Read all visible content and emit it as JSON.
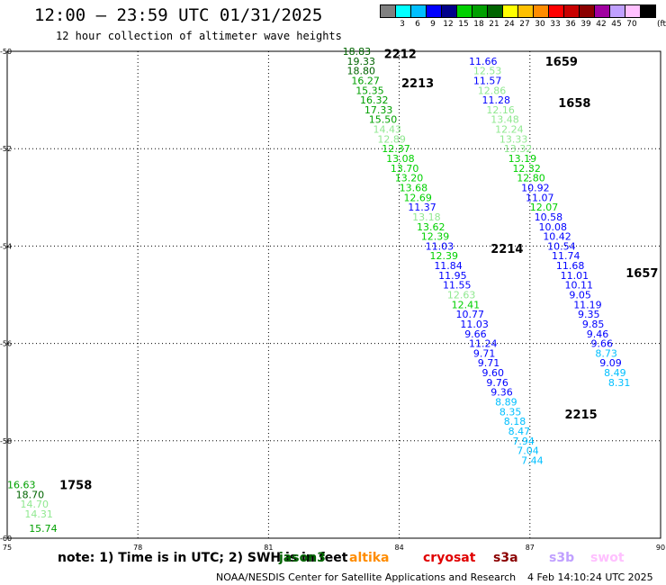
{
  "header": {
    "title": "12:00 – 23:59 UTC 01/31/2025",
    "subtitle": "12 hour collection of altimeter wave heights",
    "units": "(ft)"
  },
  "colorbar": {
    "colors": [
      "#808080",
      "#00ffff",
      "#00bfff",
      "#0000ff",
      "#00008b",
      "#00d000",
      "#00a000",
      "#006400",
      "#ffff00",
      "#ffc000",
      "#ff8c00",
      "#ff0000",
      "#c80000",
      "#8b0000",
      "#a000a0",
      "#c0a0ff",
      "#ffc0ff",
      "#000000"
    ],
    "labels": [
      "3",
      "6",
      "9",
      "12",
      "15",
      "18",
      "21",
      "24",
      "27",
      "30",
      "33",
      "36",
      "39",
      "42",
      "45",
      "70"
    ]
  },
  "footer": {
    "note": "note:  1) Time is in UTC;  2) SWH is in feet",
    "credit": "NOAA/NESDIS Center for Satellite Applications and Research",
    "timestamp": "4 Feb 14:10:24 UTC 2025",
    "legend": [
      {
        "label": "jason3",
        "color": "#006400"
      },
      {
        "label": "altika",
        "color": "#ff8c00"
      },
      {
        "label": "cryosat",
        "color": "#e00000"
      },
      {
        "label": "s3a",
        "color": "#8b0000"
      },
      {
        "label": "s3b",
        "color": "#c0a0ff"
      },
      {
        "label": "swot",
        "color": "#ffc0ff"
      }
    ]
  },
  "chart_data": {
    "type": "scatter",
    "x_range": [
      75,
      90
    ],
    "y_range": [
      -60,
      -50
    ],
    "x_ticks": [
      75,
      78,
      81,
      84,
      87,
      90
    ],
    "y_ticks": [
      -50,
      -52,
      -54,
      -56,
      -58,
      -60
    ],
    "x_tick_labels": [
      "75",
      "78",
      "81",
      "84",
      "87",
      "90"
    ],
    "y_tick_labels": [
      "-50",
      "-52",
      "-54",
      "-56",
      "-58",
      "-60"
    ],
    "grid": true,
    "pass_labels": [
      {
        "text": "2212",
        "x": 83.65,
        "y": -50.05,
        "color": "#ff80c0"
      },
      {
        "text": "2213",
        "x": 84.05,
        "y": -50.65,
        "color": "#ff80c0"
      },
      {
        "text": "2214",
        "x": 86.1,
        "y": -54.05,
        "color": "#ff80c0"
      },
      {
        "text": "2215",
        "x": 87.8,
        "y": -57.45,
        "color": "#ff80c0"
      },
      {
        "text": "1659",
        "x": 87.35,
        "y": -50.2,
        "color": "#8b0000"
      },
      {
        "text": "1658",
        "x": 87.65,
        "y": -51.05,
        "color": "#8b0000"
      },
      {
        "text": "1657",
        "x": 89.2,
        "y": -54.55,
        "color": "#8b0000"
      },
      {
        "text": "1758",
        "x": 76.2,
        "y": -58.9,
        "color": "#c0a0ff"
      }
    ],
    "points": [
      {
        "x": 82.7,
        "y": -50.0,
        "v": "18.83",
        "c": "#006400"
      },
      {
        "x": 82.8,
        "y": -50.2,
        "v": "19.33",
        "c": "#006400"
      },
      {
        "x": 82.8,
        "y": -50.4,
        "v": "18.80",
        "c": "#006400"
      },
      {
        "x": 82.9,
        "y": -50.6,
        "v": "16.27",
        "c": "#00a000"
      },
      {
        "x": 83.0,
        "y": -50.8,
        "v": "15.35",
        "c": "#00a000"
      },
      {
        "x": 83.1,
        "y": -51.0,
        "v": "16.32",
        "c": "#00a000"
      },
      {
        "x": 83.2,
        "y": -51.2,
        "v": "17.33",
        "c": "#00a000"
      },
      {
        "x": 83.3,
        "y": -51.4,
        "v": "15.50",
        "c": "#00a000"
      },
      {
        "x": 83.4,
        "y": -51.6,
        "v": "14.43",
        "c": "#90e890"
      },
      {
        "x": 83.5,
        "y": -51.8,
        "v": "12.89",
        "c": "#90e890"
      },
      {
        "x": 83.6,
        "y": -52.0,
        "v": "12.37",
        "c": "#00d000"
      },
      {
        "x": 83.7,
        "y": -52.2,
        "v": "13.08",
        "c": "#00d000"
      },
      {
        "x": 83.8,
        "y": -52.4,
        "v": "13.70",
        "c": "#00d000"
      },
      {
        "x": 83.9,
        "y": -52.6,
        "v": "13.20",
        "c": "#00d000"
      },
      {
        "x": 84.0,
        "y": -52.8,
        "v": "13.68",
        "c": "#00d000"
      },
      {
        "x": 84.1,
        "y": -53.0,
        "v": "12.69",
        "c": "#00d000"
      },
      {
        "x": 84.2,
        "y": -53.2,
        "v": "11.37",
        "c": "#0000ff"
      },
      {
        "x": 84.3,
        "y": -53.4,
        "v": "13.18",
        "c": "#90e890"
      },
      {
        "x": 84.4,
        "y": -53.6,
        "v": "13.62",
        "c": "#00d000"
      },
      {
        "x": 84.5,
        "y": -53.8,
        "v": "12.39",
        "c": "#00d000"
      },
      {
        "x": 84.6,
        "y": -54.0,
        "v": "11.03",
        "c": "#0000ff"
      },
      {
        "x": 84.7,
        "y": -54.2,
        "v": "12.39",
        "c": "#00d000"
      },
      {
        "x": 84.8,
        "y": -54.4,
        "v": "11.84",
        "c": "#0000ff"
      },
      {
        "x": 84.9,
        "y": -54.6,
        "v": "11.95",
        "c": "#0000ff"
      },
      {
        "x": 85.0,
        "y": -54.8,
        "v": "11.55",
        "c": "#0000ff"
      },
      {
        "x": 85.1,
        "y": -55.0,
        "v": "12.63",
        "c": "#90e890"
      },
      {
        "x": 85.2,
        "y": -55.2,
        "v": "12.41",
        "c": "#00d000"
      },
      {
        "x": 85.3,
        "y": -55.4,
        "v": "10.77",
        "c": "#0000ff"
      },
      {
        "x": 85.4,
        "y": -55.6,
        "v": "11.03",
        "c": "#0000ff"
      },
      {
        "x": 85.5,
        "y": -55.8,
        "v": "9.66",
        "c": "#0000ff"
      },
      {
        "x": 85.6,
        "y": -56.0,
        "v": "11.24",
        "c": "#0000ff"
      },
      {
        "x": 85.7,
        "y": -56.2,
        "v": "9.71",
        "c": "#0000ff"
      },
      {
        "x": 85.8,
        "y": -56.4,
        "v": "9.71",
        "c": "#0000ff"
      },
      {
        "x": 85.9,
        "y": -56.6,
        "v": "9.60",
        "c": "#0000ff"
      },
      {
        "x": 86.0,
        "y": -56.8,
        "v": "9.76",
        "c": "#0000ff"
      },
      {
        "x": 86.1,
        "y": -57.0,
        "v": "9.36",
        "c": "#0000ff"
      },
      {
        "x": 86.2,
        "y": -57.2,
        "v": "8.89",
        "c": "#00bfff"
      },
      {
        "x": 86.3,
        "y": -57.4,
        "v": "8.35",
        "c": "#00bfff"
      },
      {
        "x": 86.4,
        "y": -57.6,
        "v": "8.18",
        "c": "#00bfff"
      },
      {
        "x": 86.5,
        "y": -57.8,
        "v": "8.47",
        "c": "#00bfff"
      },
      {
        "x": 86.6,
        "y": -58.0,
        "v": "7.94",
        "c": "#00bfff"
      },
      {
        "x": 86.7,
        "y": -58.2,
        "v": "7.04",
        "c": "#00bfff"
      },
      {
        "x": 86.8,
        "y": -58.4,
        "v": "7.44",
        "c": "#00bfff"
      },
      {
        "x": 85.6,
        "y": -50.2,
        "v": "11.66",
        "c": "#0000ff"
      },
      {
        "x": 85.7,
        "y": -50.4,
        "v": "12.53",
        "c": "#90e890"
      },
      {
        "x": 85.7,
        "y": -50.6,
        "v": "11.57",
        "c": "#0000ff"
      },
      {
        "x": 85.8,
        "y": -50.8,
        "v": "12.86",
        "c": "#90e890"
      },
      {
        "x": 85.9,
        "y": -51.0,
        "v": "11.28",
        "c": "#0000ff"
      },
      {
        "x": 86.0,
        "y": -51.2,
        "v": "12.16",
        "c": "#90e890"
      },
      {
        "x": 86.1,
        "y": -51.4,
        "v": "13.48",
        "c": "#90e890"
      },
      {
        "x": 86.2,
        "y": -51.6,
        "v": "12.24",
        "c": "#90e890"
      },
      {
        "x": 86.3,
        "y": -51.8,
        "v": "13.33",
        "c": "#90e890"
      },
      {
        "x": 86.4,
        "y": -52.0,
        "v": "13.32",
        "c": "#90e890"
      },
      {
        "x": 86.5,
        "y": -52.2,
        "v": "13.19",
        "c": "#00d000"
      },
      {
        "x": 86.6,
        "y": -52.4,
        "v": "12.32",
        "c": "#00d000"
      },
      {
        "x": 86.7,
        "y": -52.6,
        "v": "12.80",
        "c": "#00d000"
      },
      {
        "x": 86.8,
        "y": -52.8,
        "v": "10.92",
        "c": "#0000ff"
      },
      {
        "x": 86.9,
        "y": -53.0,
        "v": "11.07",
        "c": "#0000ff"
      },
      {
        "x": 87.0,
        "y": -53.2,
        "v": "12.07",
        "c": "#00d000"
      },
      {
        "x": 87.1,
        "y": -53.4,
        "v": "10.58",
        "c": "#0000ff"
      },
      {
        "x": 87.2,
        "y": -53.6,
        "v": "10.08",
        "c": "#0000ff"
      },
      {
        "x": 87.3,
        "y": -53.8,
        "v": "10.42",
        "c": "#0000ff"
      },
      {
        "x": 87.4,
        "y": -54.0,
        "v": "10.54",
        "c": "#0000ff"
      },
      {
        "x": 87.5,
        "y": -54.2,
        "v": "11.74",
        "c": "#0000ff"
      },
      {
        "x": 87.6,
        "y": -54.4,
        "v": "11.68",
        "c": "#0000ff"
      },
      {
        "x": 87.7,
        "y": -54.6,
        "v": "11.01",
        "c": "#0000ff"
      },
      {
        "x": 87.8,
        "y": -54.8,
        "v": "10.11",
        "c": "#0000ff"
      },
      {
        "x": 87.9,
        "y": -55.0,
        "v": "9.05",
        "c": "#0000ff"
      },
      {
        "x": 88.0,
        "y": -55.2,
        "v": "11.19",
        "c": "#0000ff"
      },
      {
        "x": 88.1,
        "y": -55.4,
        "v": "9.35",
        "c": "#0000ff"
      },
      {
        "x": 88.2,
        "y": -55.6,
        "v": "9.85",
        "c": "#0000ff"
      },
      {
        "x": 88.3,
        "y": -55.8,
        "v": "9.46",
        "c": "#0000ff"
      },
      {
        "x": 88.4,
        "y": -56.0,
        "v": "9.66",
        "c": "#0000ff"
      },
      {
        "x": 88.5,
        "y": -56.2,
        "v": "8.73",
        "c": "#00bfff"
      },
      {
        "x": 88.6,
        "y": -56.4,
        "v": "9.09",
        "c": "#0000ff"
      },
      {
        "x": 88.7,
        "y": -56.6,
        "v": "8.49",
        "c": "#00bfff"
      },
      {
        "x": 88.8,
        "y": -56.8,
        "v": "8.31",
        "c": "#00bfff"
      },
      {
        "x": 75.0,
        "y": -58.9,
        "v": "16.63",
        "c": "#00a000"
      },
      {
        "x": 75.2,
        "y": -59.1,
        "v": "18.70",
        "c": "#006400"
      },
      {
        "x": 75.3,
        "y": -59.3,
        "v": "14.70",
        "c": "#90e890"
      },
      {
        "x": 75.4,
        "y": -59.5,
        "v": "14.31",
        "c": "#90e890"
      },
      {
        "x": 75.5,
        "y": -59.8,
        "v": "15.74",
        "c": "#00a000"
      }
    ]
  }
}
